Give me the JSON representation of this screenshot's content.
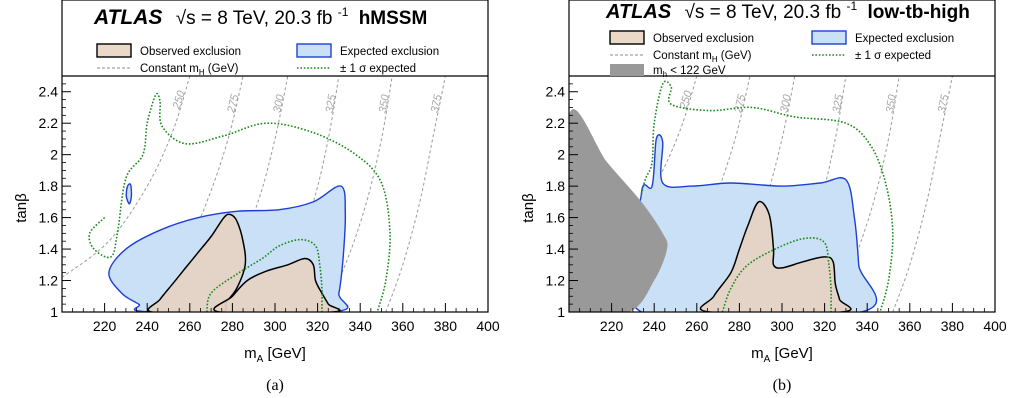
{
  "figure": {
    "panels": [
      {
        "caption": "(a)",
        "header": {
          "atlas": "ATLAS",
          "energy": "√s = 8 TeV, 20.3 fb",
          "lumi_sup": "-1",
          "scenario": "hMSSM"
        },
        "legend": {
          "observed": "Observed exclusion",
          "expected": "Expected exclusion",
          "const_mh": "Constant m",
          "const_mh_sub": "H",
          "const_mh_unit": " (GeV)",
          "sigma": "± 1 σ expected"
        }
      },
      {
        "caption": "(b)",
        "header": {
          "atlas": "ATLAS",
          "energy": "√s = 8 TeV, 20.3 fb",
          "lumi_sup": "-1",
          "scenario": "low-tb-high"
        },
        "legend": {
          "observed": "Observed exclusion",
          "expected": "Expected exclusion",
          "const_mh": "Constant m",
          "const_mh_sub": "H",
          "const_mh_unit": " (GeV)",
          "sigma": "± 1 σ expected",
          "mh_region": "m",
          "mh_region_sub": "h",
          "mh_region_text": " < 122 GeV"
        }
      }
    ]
  },
  "chart_data": [
    {
      "type": "area",
      "panel": "(a)",
      "xlabel": "m",
      "xlabel_sub": "A",
      "xlabel_unit": " [GeV]",
      "ylabel": "tanβ",
      "xlim": [
        200,
        400
      ],
      "ylim": [
        1.0,
        2.5
      ],
      "xticks": [
        220,
        240,
        260,
        280,
        300,
        320,
        340,
        360,
        380,
        400
      ],
      "yticks": [
        1,
        1.2,
        1.4,
        1.6,
        1.8,
        2,
        2.2,
        2.4
      ],
      "ytick_labels": [
        "1",
        "1.2",
        "1.4",
        "1.6",
        "1.8",
        "2",
        "2.2",
        "2.4"
      ],
      "mh_contours": [
        {
          "label": "250",
          "points": [
            [
              200,
              1.22
            ],
            [
              222,
              1.45
            ],
            [
              240,
              1.8
            ],
            [
              252,
              2.15
            ],
            [
              260,
              2.5
            ]
          ]
        },
        {
          "label": "275",
          "points": [
            [
              240,
              1.0
            ],
            [
              255,
              1.3
            ],
            [
              268,
              1.7
            ],
            [
              278,
              2.1
            ],
            [
              285,
              2.5
            ]
          ]
        },
        {
          "label": "300",
          "points": [
            [
              268,
              1.0
            ],
            [
              280,
              1.3
            ],
            [
              292,
              1.7
            ],
            [
              300,
              2.1
            ],
            [
              306,
              2.5
            ]
          ]
        },
        {
          "label": "325",
          "points": [
            [
              296,
              1.0
            ],
            [
              307,
              1.3
            ],
            [
              318,
              1.7
            ],
            [
              325,
              2.1
            ],
            [
              330,
              2.5
            ]
          ]
        },
        {
          "label": "350",
          "points": [
            [
              322,
              1.0
            ],
            [
              333,
              1.3
            ],
            [
              343,
              1.7
            ],
            [
              350,
              2.1
            ],
            [
              355,
              2.5
            ]
          ]
        },
        {
          "label": "375",
          "points": [
            [
              352,
              1.0
            ],
            [
              360,
              1.3
            ],
            [
              368,
              1.7
            ],
            [
              374,
              2.1
            ],
            [
              380,
              2.5
            ]
          ]
        }
      ],
      "expected": [
        [
          [
            242,
            1.0
          ],
          [
            236,
            1.05
          ],
          [
            228,
            1.12
          ],
          [
            222,
            1.25
          ],
          [
            230,
            1.4
          ],
          [
            246,
            1.52
          ],
          [
            264,
            1.6
          ],
          [
            282,
            1.64
          ],
          [
            302,
            1.65
          ],
          [
            318,
            1.7
          ],
          [
            331,
            1.8
          ],
          [
            333,
            1.62
          ],
          [
            332,
            1.35
          ],
          [
            330,
            1.12
          ],
          [
            327,
            1.0
          ]
        ]
      ],
      "expected_small": [
        [
          [
            231,
            1.7
          ],
          [
            230.2,
            1.74
          ],
          [
            230.8,
            1.8
          ],
          [
            232.2,
            1.81
          ],
          [
            232.6,
            1.74
          ],
          [
            231.8,
            1.69
          ]
        ]
      ],
      "observed": [
        [
          [
            242,
            1.0
          ],
          [
            246,
            1.08
          ],
          [
            252,
            1.18
          ],
          [
            258,
            1.28
          ],
          [
            264,
            1.38
          ],
          [
            270,
            1.48
          ],
          [
            276,
            1.6
          ],
          [
            279,
            1.62
          ],
          [
            282,
            1.58
          ],
          [
            285,
            1.45
          ],
          [
            286,
            1.3
          ],
          [
            282,
            1.15
          ],
          [
            277,
            1.06
          ],
          [
            274,
            1.0
          ]
        ],
        [
          [
            274,
            1.0
          ],
          [
            280,
            1.1
          ],
          [
            287,
            1.2
          ],
          [
            296,
            1.26
          ],
          [
            306,
            1.3
          ],
          [
            314,
            1.34
          ],
          [
            318,
            1.3
          ],
          [
            319,
            1.2
          ],
          [
            322,
            1.12
          ],
          [
            325,
            1.05
          ],
          [
            327,
            1.0
          ]
        ]
      ],
      "sigma_contours": [
        [
          [
            220,
            1.6
          ],
          [
            213,
            1.5
          ],
          [
            215,
            1.4
          ],
          [
            223,
            1.35
          ],
          [
            226,
            1.5
          ],
          [
            230,
            1.85
          ],
          [
            238,
            2.0
          ],
          [
            240,
            2.2
          ],
          [
            244,
            2.38
          ],
          [
            246,
            2.34
          ],
          [
            247,
            2.18
          ],
          [
            258,
            2.07
          ],
          [
            276,
            2.12
          ],
          [
            296,
            2.2
          ],
          [
            318,
            2.14
          ],
          [
            338,
            2.0
          ],
          [
            350,
            1.82
          ],
          [
            354,
            1.5
          ],
          [
            352,
            1.2
          ],
          [
            348,
            1.0
          ]
        ],
        [
          [
            268,
            1.0
          ],
          [
            270,
            1.12
          ],
          [
            282,
            1.24
          ],
          [
            294,
            1.34
          ],
          [
            302,
            1.42
          ],
          [
            312,
            1.46
          ],
          [
            319,
            1.42
          ],
          [
            321,
            1.3
          ],
          [
            322,
            1.15
          ],
          [
            322,
            1.0
          ]
        ]
      ],
      "mh_low_region": null
    },
    {
      "type": "area",
      "panel": "(b)",
      "xlabel": "m",
      "xlabel_sub": "A",
      "xlabel_unit": " [GeV]",
      "ylabel": "tanβ",
      "xlim": [
        200,
        400
      ],
      "ylim": [
        1.0,
        2.5
      ],
      "xticks": [
        220,
        240,
        260,
        280,
        300,
        320,
        340,
        360,
        380,
        400
      ],
      "yticks": [
        1,
        1.2,
        1.4,
        1.6,
        1.8,
        2,
        2.2,
        2.4
      ],
      "ytick_labels": [
        "1",
        "1.2",
        "1.4",
        "1.6",
        "1.8",
        "2",
        "2.2",
        "2.4"
      ],
      "mh_contours": [
        {
          "label": "250",
          "points": [
            [
              200,
              1.22
            ],
            [
              222,
              1.45
            ],
            [
              240,
              1.8
            ],
            [
              252,
              2.15
            ],
            [
              260,
              2.5
            ]
          ]
        },
        {
          "label": "275",
          "points": [
            [
              240,
              1.0
            ],
            [
              255,
              1.3
            ],
            [
              268,
              1.7
            ],
            [
              278,
              2.1
            ],
            [
              285,
              2.5
            ]
          ]
        },
        {
          "label": "300",
          "points": [
            [
              268,
              1.0
            ],
            [
              280,
              1.3
            ],
            [
              292,
              1.7
            ],
            [
              300,
              2.1
            ],
            [
              306,
              2.5
            ]
          ]
        },
        {
          "label": "325",
          "points": [
            [
              296,
              1.0
            ],
            [
              307,
              1.3
            ],
            [
              318,
              1.7
            ],
            [
              325,
              2.1
            ],
            [
              330,
              2.5
            ]
          ]
        },
        {
          "label": "350",
          "points": [
            [
              322,
              1.0
            ],
            [
              333,
              1.3
            ],
            [
              343,
              1.7
            ],
            [
              350,
              2.1
            ],
            [
              355,
              2.5
            ]
          ]
        },
        {
          "label": "375",
          "points": [
            [
              352,
              1.0
            ],
            [
              360,
              1.3
            ],
            [
              368,
              1.7
            ],
            [
              374,
              2.1
            ],
            [
              380,
              2.5
            ]
          ]
        }
      ],
      "expected": [
        [
          [
            234,
            1.0
          ],
          [
            234,
            1.75
          ],
          [
            239,
            1.8
          ],
          [
            241,
            2.1
          ],
          [
            244,
            2.08
          ],
          [
            244,
            1.82
          ],
          [
            258,
            1.8
          ],
          [
            276,
            1.82
          ],
          [
            300,
            1.8
          ],
          [
            318,
            1.82
          ],
          [
            330,
            1.84
          ],
          [
            334,
            1.6
          ],
          [
            336,
            1.3
          ],
          [
            337,
            1.0
          ]
        ]
      ],
      "expected_small": null,
      "observed": [
        [
          [
            266,
            1.0
          ],
          [
            268,
            1.1
          ],
          [
            276,
            1.25
          ],
          [
            280,
            1.4
          ],
          [
            284,
            1.55
          ],
          [
            289,
            1.7
          ],
          [
            294,
            1.62
          ],
          [
            296,
            1.4
          ],
          [
            296,
            1.3
          ],
          [
            300,
            1.28
          ],
          [
            310,
            1.32
          ],
          [
            320,
            1.35
          ],
          [
            324,
            1.32
          ],
          [
            325,
            1.18
          ],
          [
            327,
            1.08
          ],
          [
            328,
            1.0
          ]
        ]
      ],
      "sigma_contours": [
        [
          [
            234,
            1.75
          ],
          [
            236,
            1.85
          ],
          [
            239,
            1.95
          ],
          [
            240,
            2.2
          ],
          [
            244,
            2.45
          ],
          [
            248,
            2.43
          ],
          [
            248,
            2.32
          ],
          [
            266,
            2.28
          ],
          [
            286,
            2.3
          ],
          [
            306,
            2.24
          ],
          [
            330,
            2.2
          ],
          [
            342,
            2.05
          ],
          [
            349,
            1.8
          ],
          [
            352,
            1.5
          ],
          [
            350,
            1.2
          ],
          [
            346,
            1.0
          ]
        ],
        [
          [
            272,
            1.0
          ],
          [
            276,
            1.15
          ],
          [
            284,
            1.3
          ],
          [
            300,
            1.42
          ],
          [
            312,
            1.47
          ],
          [
            320,
            1.44
          ],
          [
            322,
            1.3
          ],
          [
            323,
            1.15
          ],
          [
            323,
            1.0
          ]
        ]
      ],
      "mh_low_region": [
        [
          200,
          2.25
        ],
        [
          218,
          1.95
        ],
        [
          234,
          1.7
        ],
        [
          244,
          1.5
        ],
        [
          246,
          1.4
        ],
        [
          240,
          1.2
        ],
        [
          228,
          1.0
        ],
        [
          200,
          1.0
        ]
      ]
    }
  ]
}
